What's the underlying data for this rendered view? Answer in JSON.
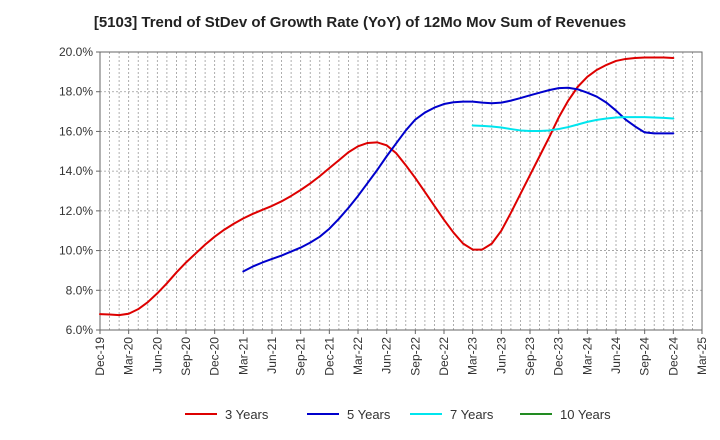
{
  "chart_data": {
    "type": "line",
    "title": "[5103]  Trend of StDev of Growth Rate (YoY) of 12Mo Mov Sum of Revenues",
    "xlabel": "",
    "ylabel": "",
    "ylim": [
      6.0,
      20.0
    ],
    "y_ticks": [
      "6.0%",
      "8.0%",
      "10.0%",
      "12.0%",
      "14.0%",
      "16.0%",
      "18.0%",
      "20.0%"
    ],
    "y_tick_values": [
      6,
      8,
      10,
      12,
      14,
      16,
      18,
      20
    ],
    "x_ticks": [
      "Dec-19",
      "Mar-20",
      "Jun-20",
      "Sep-20",
      "Dec-20",
      "Mar-21",
      "Jun-21",
      "Sep-21",
      "Dec-21",
      "Mar-22",
      "Jun-22",
      "Sep-22",
      "Dec-22",
      "Mar-23",
      "Jun-23",
      "Sep-23",
      "Dec-23",
      "Mar-24",
      "Jun-24",
      "Sep-24",
      "Dec-24",
      "Mar-25"
    ],
    "x_range": [
      0,
      63
    ],
    "grid": true,
    "legend_position": "bottom",
    "series": [
      {
        "name": "3 Years",
        "color": "#dd0000",
        "x": [
          0,
          1,
          2,
          3,
          4,
          5,
          6,
          7,
          8,
          9,
          10,
          11,
          12,
          13,
          14,
          15,
          16,
          17,
          18,
          19,
          20,
          21,
          22,
          23,
          24,
          25,
          26,
          27,
          28,
          29,
          30,
          31,
          32,
          33,
          34,
          35,
          36,
          37,
          38,
          39,
          40,
          41,
          42,
          43,
          44,
          45,
          46,
          47,
          48,
          49,
          50,
          51,
          52,
          53,
          54,
          55,
          56,
          57,
          58,
          59,
          60
        ],
        "values": [
          6.8,
          6.78,
          6.75,
          6.82,
          7.05,
          7.4,
          7.85,
          8.35,
          8.9,
          9.4,
          9.85,
          10.3,
          10.7,
          11.05,
          11.35,
          11.62,
          11.85,
          12.05,
          12.25,
          12.48,
          12.75,
          13.05,
          13.38,
          13.75,
          14.15,
          14.55,
          14.95,
          15.25,
          15.42,
          15.45,
          15.3,
          14.9,
          14.3,
          13.65,
          12.95,
          12.25,
          11.55,
          10.9,
          10.35,
          10.05,
          10.05,
          10.35,
          11.0,
          11.9,
          12.85,
          13.8,
          14.75,
          15.7,
          16.7,
          17.55,
          18.25,
          18.75,
          19.1,
          19.35,
          19.55,
          19.65,
          19.7,
          19.72,
          19.72,
          19.72,
          19.7
        ],
        "x_end": 60
      },
      {
        "name": "5 Years",
        "color": "#0000cc",
        "x": [
          15,
          16,
          17,
          18,
          19,
          20,
          21,
          22,
          23,
          24,
          25,
          26,
          27,
          28,
          29,
          30,
          31,
          32,
          33,
          34,
          35,
          36,
          37,
          38,
          39,
          40,
          41,
          42,
          43,
          44,
          45,
          46,
          47,
          48,
          49,
          50,
          51,
          52,
          53,
          54,
          55,
          56,
          57,
          58,
          59,
          60
        ],
        "values": [
          8.95,
          9.2,
          9.4,
          9.58,
          9.75,
          9.95,
          10.15,
          10.4,
          10.7,
          11.1,
          11.6,
          12.15,
          12.75,
          13.4,
          14.05,
          14.75,
          15.4,
          16.05,
          16.6,
          16.95,
          17.2,
          17.38,
          17.47,
          17.5,
          17.5,
          17.45,
          17.42,
          17.45,
          17.55,
          17.68,
          17.82,
          17.95,
          18.08,
          18.18,
          18.2,
          18.12,
          17.95,
          17.75,
          17.45,
          17.05,
          16.6,
          16.25,
          15.95,
          15.9,
          15.9,
          15.9
        ],
        "x_end": 60
      },
      {
        "name": "7 Years",
        "color": "#00e5ee",
        "x": [
          39,
          40,
          41,
          42,
          43,
          44,
          45,
          46,
          47,
          48,
          49,
          50,
          51,
          52,
          53,
          54,
          55,
          56,
          57,
          58,
          59,
          60
        ],
        "values": [
          16.3,
          16.28,
          16.25,
          16.2,
          16.12,
          16.05,
          16.02,
          16.02,
          16.05,
          16.12,
          16.22,
          16.35,
          16.48,
          16.58,
          16.65,
          16.7,
          16.72,
          16.72,
          16.72,
          16.7,
          16.68,
          16.65
        ],
        "x_end": 60
      },
      {
        "name": "10 Years",
        "color": "#228b22",
        "x": [],
        "values": []
      }
    ]
  }
}
